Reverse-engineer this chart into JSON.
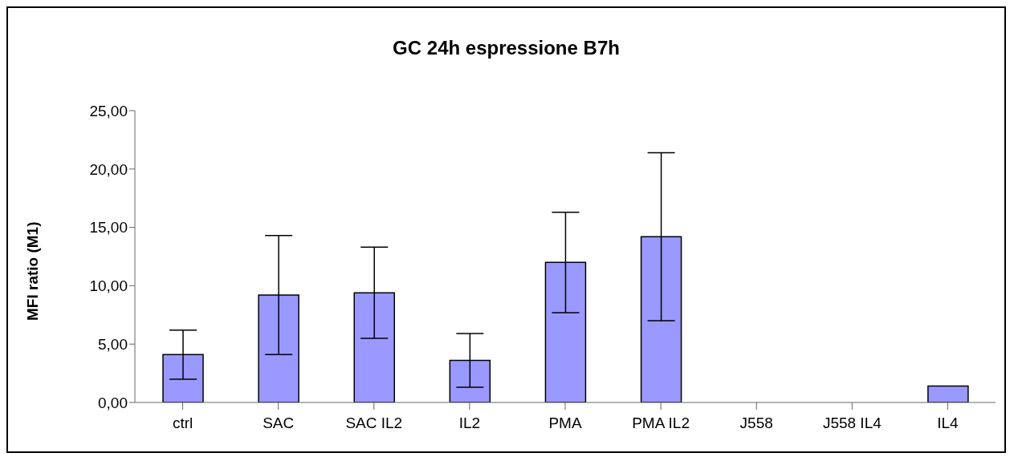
{
  "chart_data": {
    "type": "bar",
    "title": "GC 24h espressione B7h",
    "ylabel": "MFI ratio (M1)",
    "categories": [
      "ctrl",
      "SAC",
      "SAC IL2",
      "IL2",
      "PMA",
      "PMA IL2",
      "J558",
      "J558 IL4",
      "IL4"
    ],
    "values": [
      4.1,
      9.2,
      9.4,
      3.6,
      12.0,
      14.2,
      0,
      0,
      1.4
    ],
    "errors": [
      2.1,
      5.1,
      3.9,
      2.3,
      4.3,
      7.2,
      null,
      null,
      null
    ],
    "color": "#9999ff",
    "ylim": [
      0,
      25
    ],
    "yticks": [
      {
        "value": 0,
        "label": "0,00"
      },
      {
        "value": 5,
        "label": "5,00"
      },
      {
        "value": 10,
        "label": "10,00"
      },
      {
        "value": 15,
        "label": "15,00"
      },
      {
        "value": 20,
        "label": "20,00"
      },
      {
        "value": 25,
        "label": "25,00"
      }
    ],
    "grid": false,
    "legend": false
  }
}
